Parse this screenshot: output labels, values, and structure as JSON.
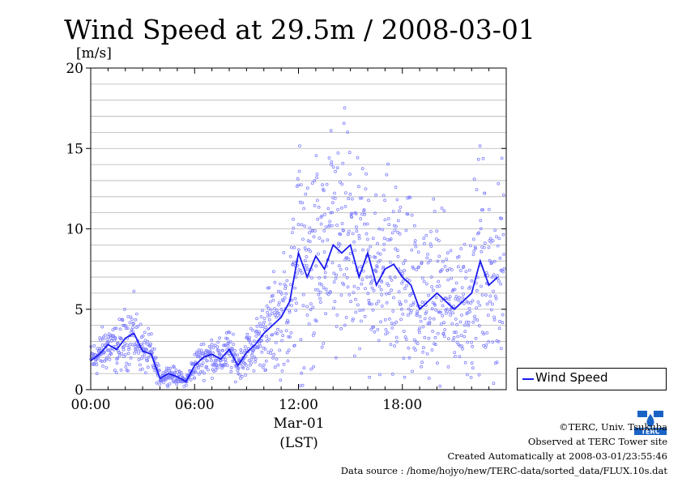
{
  "chart_data": {
    "type": "scatter",
    "title": "Wind Speed at 29.5m / 2008-03-01",
    "ylabel": "[m/s]",
    "xlabel_date": "Mar-01",
    "xlabel_tz": "(LST)",
    "xlim": [
      0,
      24
    ],
    "ylim": [
      0,
      20
    ],
    "x_ticks": [
      0,
      6,
      12,
      18
    ],
    "x_tick_labels": [
      "00:00",
      "06:00",
      "12:00",
      "18:00"
    ],
    "y_ticks": [
      0,
      5,
      10,
      15,
      20
    ],
    "y_tick_labels": [
      "0",
      "5",
      "10",
      "15",
      "20"
    ],
    "y_minor_step": 1,
    "grid": true,
    "legend": {
      "placement": "right",
      "label": "Wind Speed"
    },
    "colors": {
      "line": "#1a1aee",
      "points": "#7f7fff"
    },
    "series": [
      {
        "name": "Wind Speed",
        "x": [
          0.0,
          0.5,
          1.0,
          1.5,
          2.0,
          2.5,
          3.0,
          3.5,
          4.0,
          4.5,
          5.0,
          5.5,
          6.0,
          6.5,
          7.0,
          7.5,
          8.0,
          8.5,
          9.0,
          9.5,
          10.0,
          10.5,
          11.0,
          11.5,
          12.0,
          12.5,
          13.0,
          13.5,
          14.0,
          14.5,
          15.0,
          15.5,
          16.0,
          16.5,
          17.0,
          17.5,
          18.0,
          18.5,
          19.0,
          19.5,
          20.0,
          20.5,
          21.0,
          21.5,
          22.0,
          22.5,
          23.0,
          23.5
        ],
        "values": [
          1.8,
          2.2,
          2.8,
          2.5,
          3.2,
          3.5,
          2.4,
          2.2,
          0.7,
          1.0,
          0.8,
          0.5,
          1.5,
          2.0,
          2.2,
          1.9,
          2.5,
          1.5,
          2.3,
          2.8,
          3.5,
          4.0,
          4.5,
          5.5,
          8.5,
          7.0,
          8.3,
          7.5,
          9.0,
          8.5,
          9.0,
          7.0,
          8.5,
          6.5,
          7.5,
          7.8,
          7.0,
          6.5,
          5.0,
          5.5,
          6.0,
          5.5,
          5.0,
          5.5,
          6.0,
          8.0,
          6.5,
          7.0
        ]
      }
    ]
  },
  "footer": {
    "copyright": "©TERC, Univ. Tsukuba",
    "site": "Observed at TERC Tower site",
    "created": "Created Automatically at 2008-03-01/23:55:46",
    "source": "Data source : /home/hojyo/new/TERC-data/sorted_data/FLUX.10s.dat"
  },
  "logo": {
    "text": "TERC"
  }
}
